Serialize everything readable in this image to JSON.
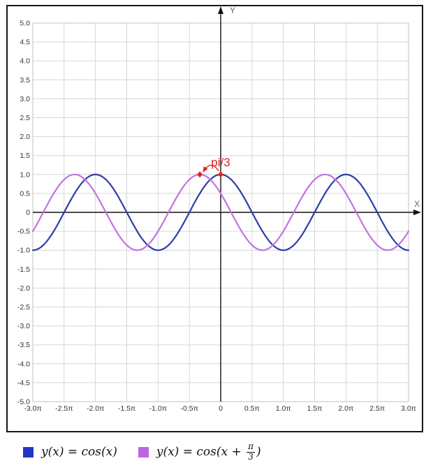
{
  "chart_data": {
    "type": "line",
    "title": "",
    "x_axis_label": "X",
    "y_axis_label": "Y",
    "x_range_pi": [
      -3,
      3
    ],
    "y_range": [
      -5,
      5
    ],
    "grid": true,
    "legend_position": "bottom",
    "x_ticks": [
      "-3.0π",
      "-2.5π",
      "-2.0π",
      "-1.5π",
      "-1.0π",
      "-0.5π",
      "0",
      "0.5π",
      "1.0π",
      "1.5π",
      "2.0π",
      "2.5π",
      "3.0π"
    ],
    "y_ticks": [
      "5.0",
      "4.5",
      "4.0",
      "3.5",
      "3.0",
      "2.5",
      "2.0",
      "1.5",
      "1.0",
      "0.5",
      "0",
      "-0.5",
      "-1.0",
      "-1.5",
      "-2.0",
      "-2.5",
      "-3.0",
      "-3.5",
      "-4.0",
      "-4.5",
      "-5.0"
    ],
    "series": [
      {
        "id": "cos",
        "name": "y(x) = cos(x)",
        "amplitude": 1,
        "phase_pi": 0,
        "period_pi": 2,
        "color": "#2e3caa"
      },
      {
        "id": "cos-shifted",
        "name": "y(x) = cos(x + π/3)",
        "amplitude": 1,
        "phase_pi": 0.33333,
        "period_pi": 2,
        "color": "#c273e3"
      }
    ],
    "annotation": {
      "label": "pi/3",
      "color": "#dd2525",
      "points_pi_y": [
        {
          "x_pi": -0.33333,
          "y": 1
        },
        {
          "x_pi": 0,
          "y": 1
        }
      ]
    }
  },
  "legend": {
    "item1": {
      "color": "#2235c8",
      "label": "y(x) = cos(x)"
    },
    "item2": {
      "color": "#bb65e5",
      "prefix": "y(x) = cos(x + ",
      "frac_num": "π",
      "frac_den": "3",
      "suffix": ")"
    }
  }
}
